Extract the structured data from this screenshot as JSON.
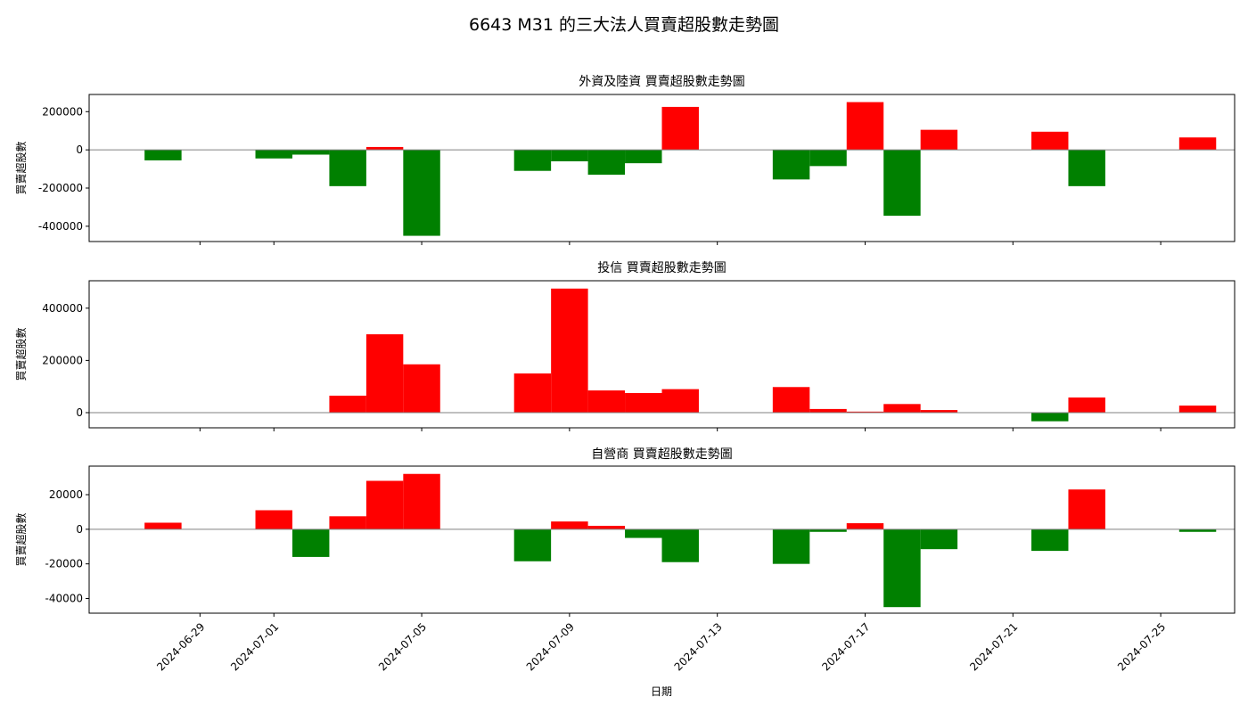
{
  "figure_title": "6643 M31 的三大法人買賣超股數走勢圖",
  "xlabel": "日期",
  "colors": {
    "positive": "#ff0000",
    "negative": "#008000",
    "zero_line": "#808080"
  },
  "chart_data": [
    {
      "type": "bar",
      "title": "外資及陸資 買賣超股數走勢圖",
      "ylabel": "買賣超股數",
      "ylim": [
        -480000,
        290000
      ],
      "yticks": [
        -400000,
        -200000,
        0,
        200000
      ],
      "xlim": [
        "2024-06-26",
        "2024-07-27"
      ],
      "xticks": [
        "2024-06-29",
        "2024-07-01",
        "2024-07-05",
        "2024-07-09",
        "2024-07-13",
        "2024-07-17",
        "2024-07-21",
        "2024-07-25"
      ],
      "dates": [
        "2024-06-28",
        "2024-07-01",
        "2024-07-02",
        "2024-07-03",
        "2024-07-04",
        "2024-07-05",
        "2024-07-08",
        "2024-07-09",
        "2024-07-10",
        "2024-07-11",
        "2024-07-12",
        "2024-07-15",
        "2024-07-16",
        "2024-07-17",
        "2024-07-18",
        "2024-07-19",
        "2024-07-22",
        "2024-07-23",
        "2024-07-26"
      ],
      "values": [
        -55000,
        -45000,
        -25000,
        -190000,
        15000,
        -450000,
        -110000,
        -60000,
        -130000,
        -70000,
        225000,
        -155000,
        -85000,
        250000,
        -345000,
        105000,
        95000,
        -190000,
        65000
      ]
    },
    {
      "type": "bar",
      "title": "投信 買賣超股數走勢圖",
      "ylabel": "買賣超股數",
      "ylim": [
        -58000,
        505000
      ],
      "yticks": [
        0,
        200000,
        400000
      ],
      "xlim": [
        "2024-06-26",
        "2024-07-27"
      ],
      "xticks": [
        "2024-06-29",
        "2024-07-01",
        "2024-07-05",
        "2024-07-09",
        "2024-07-13",
        "2024-07-17",
        "2024-07-21",
        "2024-07-25"
      ],
      "dates": [
        "2024-07-03",
        "2024-07-04",
        "2024-07-05",
        "2024-07-08",
        "2024-07-09",
        "2024-07-10",
        "2024-07-11",
        "2024-07-12",
        "2024-07-15",
        "2024-07-16",
        "2024-07-17",
        "2024-07-18",
        "2024-07-19",
        "2024-07-22",
        "2024-07-23",
        "2024-07-26"
      ],
      "values": [
        65000,
        300000,
        185000,
        150000,
        475000,
        85000,
        75000,
        90000,
        98000,
        14000,
        4000,
        33000,
        10000,
        -33000,
        58000,
        27000
      ]
    },
    {
      "type": "bar",
      "title": "自營商 買賣超股數走勢圖",
      "ylabel": "買賣超股數",
      "ylim": [
        -48500,
        36500
      ],
      "yticks": [
        -40000,
        -20000,
        0,
        20000
      ],
      "xlim": [
        "2024-06-26",
        "2024-07-27"
      ],
      "xticks": [
        "2024-06-29",
        "2024-07-01",
        "2024-07-05",
        "2024-07-09",
        "2024-07-13",
        "2024-07-17",
        "2024-07-21",
        "2024-07-25"
      ],
      "dates": [
        "2024-06-28",
        "2024-07-01",
        "2024-07-02",
        "2024-07-03",
        "2024-07-04",
        "2024-07-05",
        "2024-07-08",
        "2024-07-09",
        "2024-07-10",
        "2024-07-11",
        "2024-07-12",
        "2024-07-15",
        "2024-07-16",
        "2024-07-17",
        "2024-07-18",
        "2024-07-19",
        "2024-07-22",
        "2024-07-23",
        "2024-07-26"
      ],
      "values": [
        3800,
        11000,
        -16000,
        7500,
        28000,
        32000,
        -18500,
        4500,
        2000,
        -5000,
        -19000,
        -20000,
        -1500,
        3500,
        -45000,
        -11500,
        -12500,
        23000,
        -1500
      ]
    }
  ]
}
